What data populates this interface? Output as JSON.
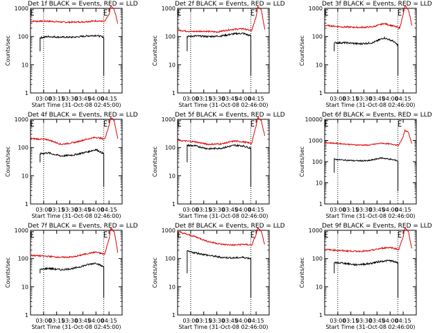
{
  "chart_data": {
    "type": "line",
    "x_tick_labels": [
      "03:00",
      "03:15",
      "03:30",
      "03:45",
      "04:00",
      "04:15"
    ],
    "x_ticks_minutes_after_start": [
      15,
      30,
      45,
      60,
      75,
      90
    ],
    "xlim_minutes_after_start": [
      0,
      105
    ],
    "y_tick_labels": [
      "1",
      "10",
      "100",
      "1000"
    ],
    "y_tick_labels_panel6": [
      "1",
      "10",
      "100",
      "1000",
      "10000"
    ],
    "ylabel": "Counts/sec",
    "yscale": "log",
    "ylim": [
      1,
      1000
    ],
    "ylim_panel6": [
      1,
      10000
    ],
    "xlabels": [
      "Start Time (31-Oct-08 02:45:00)",
      "Start Time (31-Oct-08 02:46:00)",
      "Start Time (31-Oct-08 02:46:00)",
      "Start Time (31-Oct-08 02:46:00)",
      "Start Time (31-Oct-08 02:46:00)",
      "Start Time (31-Oct-08 02:46:00)",
      "Start Time (31-Oct-08 02:45:00)",
      "Start Time (31-Oct-08 02:46:00)",
      "Start Time (31-Oct-08 02:46:00)"
    ],
    "panels": [
      {
        "title": "Det 1f BLACK = Events, RED = LLD",
        "start": 11,
        "end": 84,
        "events": [
          [
            11,
            90
          ],
          [
            20,
            100
          ],
          [
            35,
            95
          ],
          [
            50,
            95
          ],
          [
            65,
            105
          ],
          [
            75,
            110
          ],
          [
            84,
            95
          ]
        ],
        "lld": [
          [
            0,
            350
          ],
          [
            20,
            350
          ],
          [
            40,
            320
          ],
          [
            60,
            330
          ],
          [
            75,
            360
          ],
          [
            85,
            340
          ],
          [
            90,
            600
          ],
          [
            92,
            1200
          ],
          [
            96,
            900
          ],
          [
            100,
            300
          ]
        ],
        "dotted": [
          15,
          84
        ],
        "edge_marks": [
          0,
          84
        ]
      },
      {
        "title": "Det 2f BLACK = Events, RED = LLD",
        "start": 11,
        "end": 84,
        "events": [
          [
            11,
            100
          ],
          [
            20,
            105
          ],
          [
            35,
            100
          ],
          [
            50,
            105
          ],
          [
            65,
            125
          ],
          [
            75,
            130
          ],
          [
            84,
            105
          ]
        ],
        "lld": [
          [
            0,
            170
          ],
          [
            15,
            150
          ],
          [
            30,
            155
          ],
          [
            45,
            145
          ],
          [
            60,
            175
          ],
          [
            75,
            190
          ],
          [
            85,
            160
          ],
          [
            90,
            500
          ],
          [
            92,
            1200
          ],
          [
            96,
            900
          ],
          [
            100,
            180
          ]
        ],
        "dotted": [
          15,
          84
        ],
        "edge_marks": [
          0,
          84
        ]
      },
      {
        "title": "Det 3f BLACK = Events, RED = LLD",
        "start": 11,
        "end": 84,
        "events": [
          [
            11,
            60
          ],
          [
            25,
            60
          ],
          [
            40,
            55
          ],
          [
            55,
            60
          ],
          [
            68,
            90
          ],
          [
            78,
            70
          ],
          [
            84,
            50
          ]
        ],
        "lld": [
          [
            0,
            250
          ],
          [
            20,
            220
          ],
          [
            40,
            210
          ],
          [
            55,
            220
          ],
          [
            68,
            290
          ],
          [
            80,
            230
          ],
          [
            86,
            200
          ],
          [
            90,
            600
          ],
          [
            92,
            1200
          ],
          [
            96,
            900
          ],
          [
            100,
            250
          ]
        ],
        "dotted": [
          15,
          84
        ],
        "edge_marks": [
          0,
          84
        ]
      },
      {
        "title": "Det 4f BLACK = Events, RED = LLD",
        "start": 11,
        "end": 84,
        "events": [
          [
            11,
            60
          ],
          [
            20,
            65
          ],
          [
            35,
            50
          ],
          [
            50,
            55
          ],
          [
            65,
            70
          ],
          [
            75,
            85
          ],
          [
            84,
            60
          ]
        ],
        "lld": [
          [
            0,
            210
          ],
          [
            20,
            190
          ],
          [
            35,
            130
          ],
          [
            50,
            150
          ],
          [
            65,
            200
          ],
          [
            75,
            230
          ],
          [
            85,
            200
          ],
          [
            90,
            600
          ],
          [
            92,
            1200
          ],
          [
            96,
            900
          ],
          [
            100,
            200
          ]
        ],
        "dotted": [
          15,
          84
        ],
        "edge_marks": [
          0,
          84
        ]
      },
      {
        "title": "Det 5f BLACK = Events, RED = LLD",
        "start": 11,
        "end": 84,
        "events": [
          [
            11,
            120
          ],
          [
            20,
            115
          ],
          [
            35,
            90
          ],
          [
            50,
            95
          ],
          [
            65,
            120
          ],
          [
            75,
            115
          ],
          [
            84,
            95
          ]
        ],
        "lld": [
          [
            0,
            180
          ],
          [
            20,
            160
          ],
          [
            35,
            130
          ],
          [
            50,
            135
          ],
          [
            65,
            170
          ],
          [
            75,
            160
          ],
          [
            85,
            140
          ],
          [
            90,
            600
          ],
          [
            92,
            1200
          ],
          [
            96,
            900
          ],
          [
            100,
            250
          ]
        ],
        "dotted": [
          15,
          84
        ],
        "edge_marks": [
          0,
          84
        ]
      },
      {
        "title": "Det 6f BLACK = Events, RED = LLD",
        "start": 11,
        "end": 84,
        "events": [
          [
            11,
            130
          ],
          [
            20,
            120
          ],
          [
            35,
            110
          ],
          [
            50,
            110
          ],
          [
            65,
            150
          ],
          [
            75,
            130
          ],
          [
            84,
            110
          ]
        ],
        "lld": [
          [
            0,
            800
          ],
          [
            20,
            700
          ],
          [
            35,
            620
          ],
          [
            50,
            600
          ],
          [
            65,
            750
          ],
          [
            75,
            680
          ],
          [
            85,
            600
          ],
          [
            90,
            1500
          ],
          [
            92,
            3000
          ],
          [
            96,
            2500
          ],
          [
            100,
            700
          ]
        ],
        "dotted": [
          15,
          84
        ],
        "edge_marks": [
          0,
          84
        ]
      },
      {
        "title": "Det 7f BLACK = Events, RED = LLD",
        "start": 11,
        "end": 84,
        "events": [
          [
            11,
            40
          ],
          [
            20,
            45
          ],
          [
            35,
            40
          ],
          [
            50,
            45
          ],
          [
            65,
            60
          ],
          [
            75,
            70
          ],
          [
            84,
            50
          ]
        ],
        "lld": [
          [
            0,
            130
          ],
          [
            20,
            120
          ],
          [
            35,
            110
          ],
          [
            50,
            115
          ],
          [
            65,
            150
          ],
          [
            75,
            170
          ],
          [
            85,
            140
          ],
          [
            90,
            500
          ],
          [
            92,
            1200
          ],
          [
            96,
            900
          ],
          [
            100,
            170
          ]
        ],
        "dotted": [
          15,
          84
        ],
        "edge_marks": [
          0,
          84
        ]
      },
      {
        "title": "Det 8f BLACK = Events, RED = LLD",
        "start": 11,
        "end": 84,
        "events": [
          [
            11,
            180
          ],
          [
            20,
            160
          ],
          [
            35,
            130
          ],
          [
            50,
            110
          ],
          [
            65,
            105
          ],
          [
            75,
            110
          ],
          [
            84,
            100
          ]
        ],
        "lld": [
          [
            0,
            900
          ],
          [
            20,
            600
          ],
          [
            35,
            400
          ],
          [
            50,
            320
          ],
          [
            65,
            300
          ],
          [
            75,
            320
          ],
          [
            85,
            300
          ],
          [
            90,
            700
          ],
          [
            92,
            1200
          ],
          [
            96,
            900
          ],
          [
            100,
            300
          ]
        ],
        "dotted": [
          15,
          84
        ],
        "edge_marks": [
          0,
          84
        ]
      },
      {
        "title": "Det 9f BLACK = Events, RED = LLD",
        "start": 11,
        "end": 84,
        "events": [
          [
            11,
            70
          ],
          [
            20,
            70
          ],
          [
            35,
            60
          ],
          [
            50,
            65
          ],
          [
            65,
            80
          ],
          [
            75,
            85
          ],
          [
            84,
            70
          ]
        ],
        "lld": [
          [
            0,
            210
          ],
          [
            20,
            190
          ],
          [
            35,
            180
          ],
          [
            50,
            185
          ],
          [
            65,
            230
          ],
          [
            75,
            250
          ],
          [
            85,
            210
          ],
          [
            90,
            600
          ],
          [
            92,
            1200
          ],
          [
            96,
            900
          ],
          [
            100,
            220
          ]
        ],
        "dotted": [
          15,
          84
        ],
        "edge_marks": [
          0,
          84
        ]
      }
    ]
  }
}
